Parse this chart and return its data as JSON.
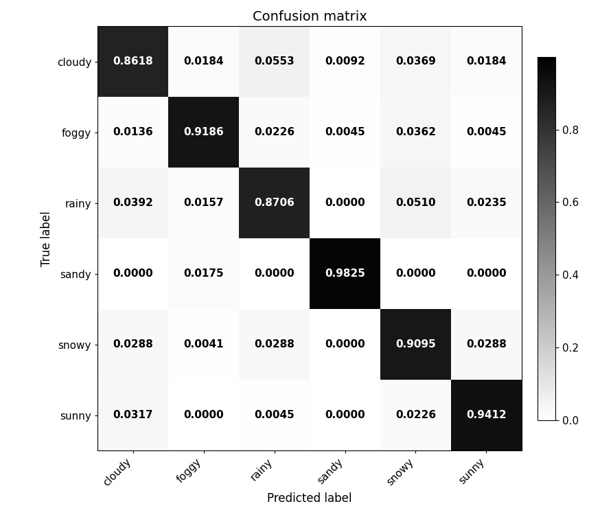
{
  "title": "Confusion matrix",
  "xlabel": "Predicted label",
  "ylabel": "True label",
  "classes": [
    "cloudy",
    "foggy",
    "rainy",
    "sandy",
    "snowy",
    "sunny"
  ],
  "matrix": [
    [
      0.8618,
      0.0184,
      0.0553,
      0.0092,
      0.0369,
      0.0184
    ],
    [
      0.0136,
      0.9186,
      0.0226,
      0.0045,
      0.0362,
      0.0045
    ],
    [
      0.0392,
      0.0157,
      0.8706,
      0.0,
      0.051,
      0.0235
    ],
    [
      0.0,
      0.0175,
      0.0,
      0.9825,
      0.0,
      0.0
    ],
    [
      0.0288,
      0.0041,
      0.0288,
      0.0,
      0.9095,
      0.0288
    ],
    [
      0.0317,
      0.0,
      0.0045,
      0.0,
      0.0226,
      0.9412
    ]
  ],
  "colormap": "binary",
  "vmin": 0.0,
  "vmax": 1.0,
  "title_fontsize": 14,
  "label_fontsize": 12,
  "tick_fontsize": 11,
  "cell_fontsize": 11,
  "figsize": [
    8.58,
    7.5
  ],
  "dpi": 100,
  "thresh": 0.5
}
